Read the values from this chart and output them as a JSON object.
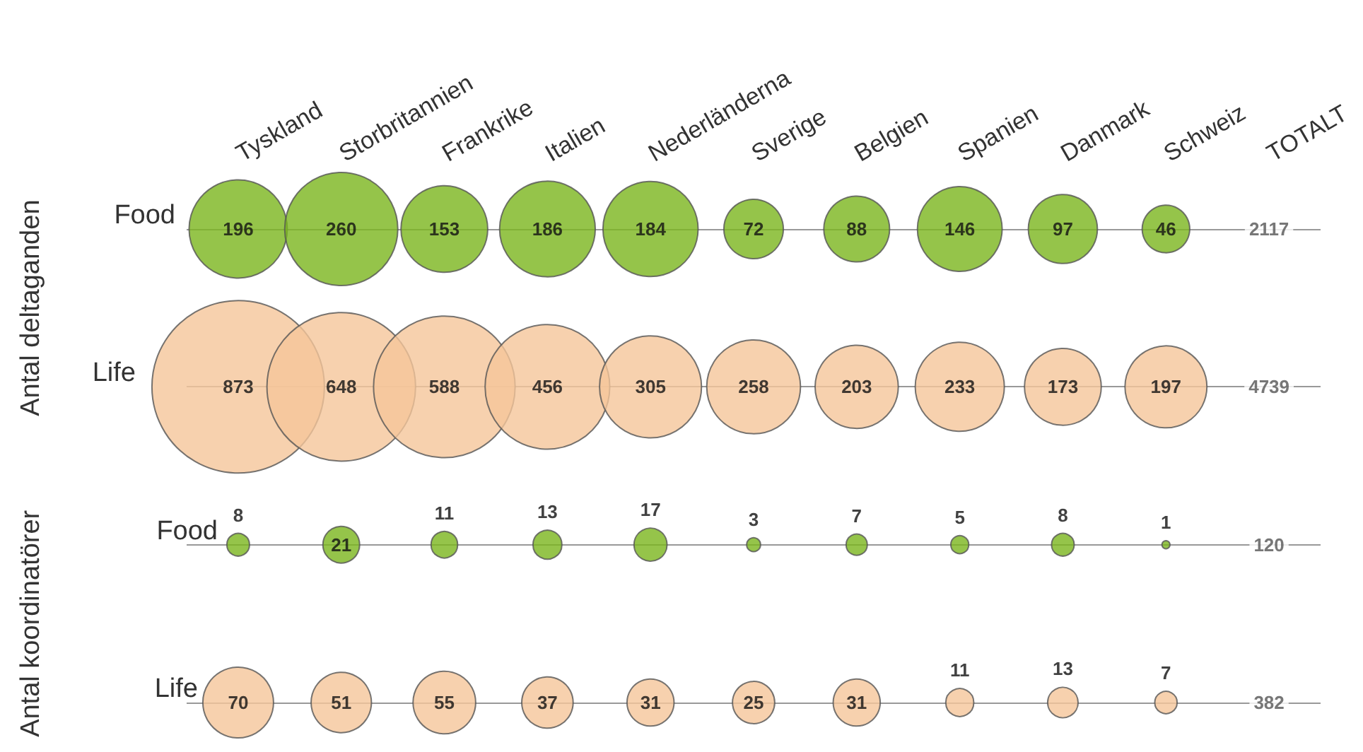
{
  "chart_data": {
    "type": "other",
    "categories": [
      "Tyskland",
      "Storbritannien",
      "Frankrike",
      "Italien",
      "Nederländerna",
      "Sverige",
      "Belgien",
      "Spanien",
      "Danmark",
      "Schweiz",
      "TOTALT"
    ],
    "series": [
      {
        "name": "Food",
        "color": "#7ab51d",
        "values": [
          196,
          260,
          153,
          186,
          184,
          72,
          88,
          146,
          97,
          46,
          null
        ]
      },
      {
        "name": "Life",
        "color": "#f5c59a",
        "values": [
          873,
          648,
          588,
          456,
          305,
          258,
          203,
          233,
          173,
          197,
          null
        ]
      },
      {
        "name": "Food",
        "color": "#7ab51d",
        "values": [
          8,
          21,
          11,
          13,
          17,
          3,
          7,
          5,
          8,
          1,
          null
        ]
      },
      {
        "name": "Life",
        "color": "#f5c59a",
        "values": [
          70,
          51,
          55,
          37,
          31,
          25,
          31,
          11,
          13,
          7,
          null
        ]
      }
    ],
    "totals": [
      "2117",
      "4739",
      "120",
      "382"
    ],
    "annotations": [
      "Antal deltaganden",
      "Antal koordinatörer"
    ],
    "data_labels": true
  }
}
